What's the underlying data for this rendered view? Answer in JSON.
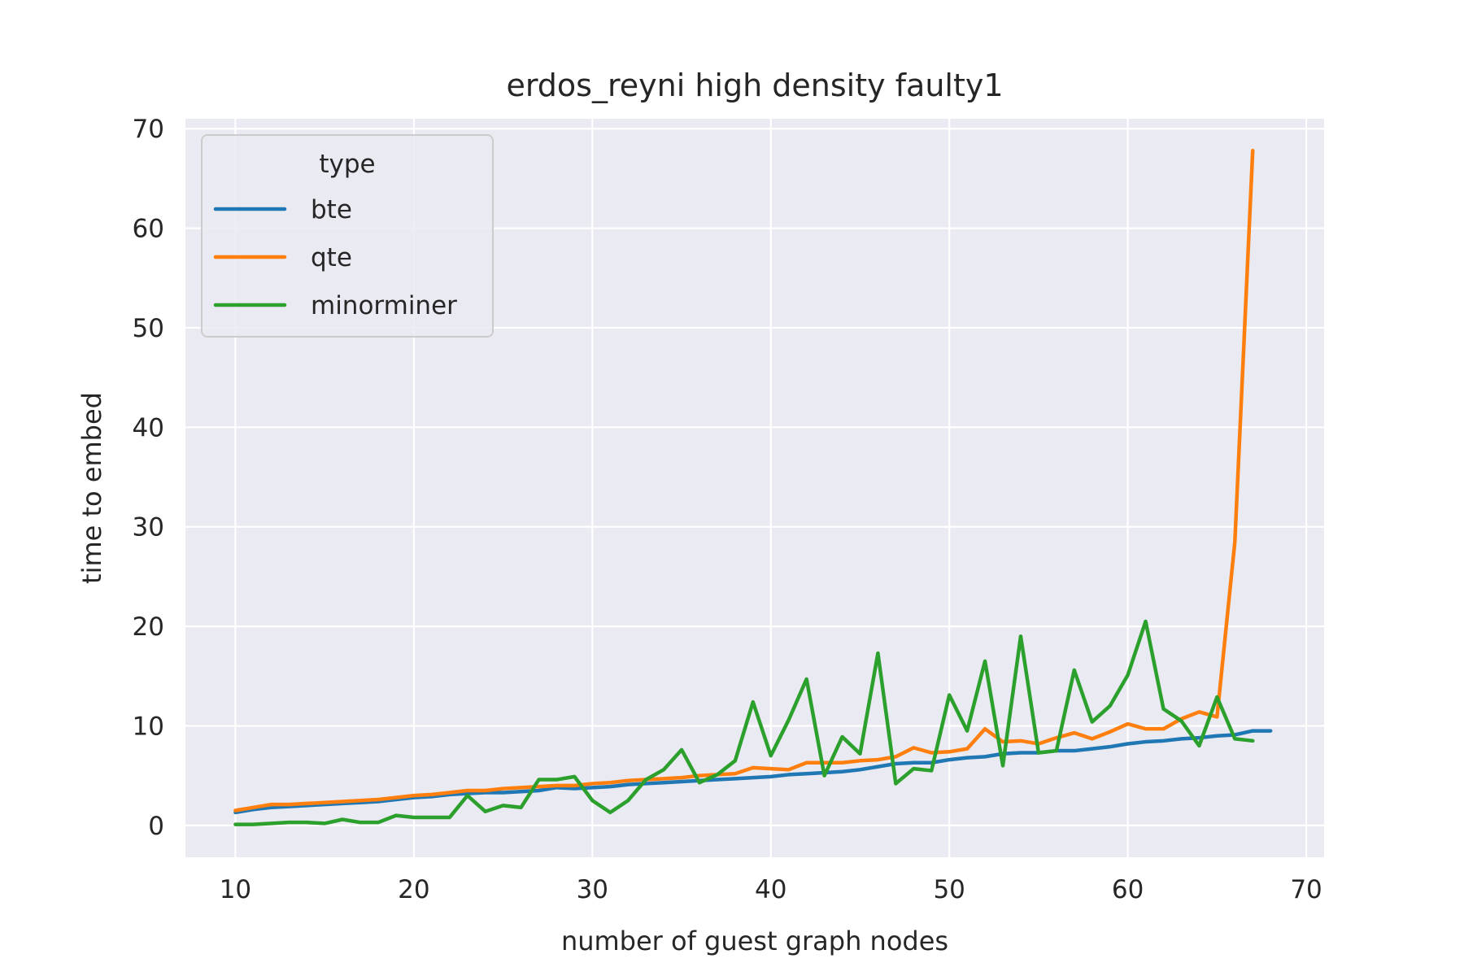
{
  "chart_data": {
    "type": "line",
    "title": "erdos_reyni high density faulty1",
    "xlabel": "number of guest graph nodes",
    "ylabel": "time to embed",
    "xlim": [
      7.2,
      71.0
    ],
    "ylim": [
      -3.2,
      71.0
    ],
    "xticks": [
      "10",
      "20",
      "30",
      "40",
      "50",
      "60",
      "70"
    ],
    "yticks": [
      "0",
      "10",
      "20",
      "30",
      "40",
      "50",
      "60",
      "70"
    ],
    "grid": true,
    "legend": {
      "title": "type",
      "position": "top-left"
    },
    "series": [
      {
        "name": "bte",
        "color": "#1f77b4",
        "x": [
          10,
          11,
          12,
          13,
          14,
          15,
          16,
          17,
          18,
          19,
          20,
          21,
          22,
          23,
          24,
          25,
          26,
          27,
          28,
          29,
          30,
          31,
          32,
          33,
          34,
          35,
          36,
          37,
          38,
          39,
          40,
          41,
          42,
          43,
          44,
          45,
          46,
          47,
          48,
          49,
          50,
          51,
          52,
          53,
          54,
          55,
          56,
          57,
          58,
          59,
          60,
          61,
          62,
          63,
          64,
          65,
          66,
          67,
          68
        ],
        "y": [
          1.3,
          1.6,
          1.8,
          1.9,
          2.0,
          2.1,
          2.2,
          2.3,
          2.4,
          2.6,
          2.8,
          2.9,
          3.1,
          3.2,
          3.3,
          3.3,
          3.4,
          3.5,
          3.8,
          3.7,
          3.8,
          3.9,
          4.1,
          4.2,
          4.3,
          4.4,
          4.5,
          4.6,
          4.7,
          4.8,
          4.9,
          5.1,
          5.2,
          5.3,
          5.4,
          5.6,
          5.9,
          6.2,
          6.3,
          6.3,
          6.6,
          6.8,
          6.9,
          7.2,
          7.3,
          7.3,
          7.5,
          7.5,
          7.7,
          7.9,
          8.2,
          8.4,
          8.5,
          8.7,
          8.8,
          9.0,
          9.1,
          9.5,
          9.5
        ]
      },
      {
        "name": "qte",
        "color": "#ff7f0e",
        "x": [
          10,
          11,
          12,
          13,
          14,
          15,
          16,
          17,
          18,
          19,
          20,
          21,
          22,
          23,
          24,
          25,
          26,
          27,
          28,
          29,
          30,
          31,
          32,
          33,
          34,
          35,
          36,
          37,
          38,
          39,
          40,
          41,
          42,
          43,
          44,
          45,
          46,
          47,
          48,
          49,
          50,
          51,
          52,
          53,
          54,
          55,
          56,
          57,
          58,
          59,
          60,
          61,
          62,
          63,
          64,
          65,
          66,
          67
        ],
        "y": [
          1.5,
          1.8,
          2.1,
          2.1,
          2.2,
          2.3,
          2.4,
          2.5,
          2.6,
          2.8,
          3.0,
          3.1,
          3.3,
          3.5,
          3.5,
          3.7,
          3.8,
          3.9,
          4.0,
          4.0,
          4.2,
          4.3,
          4.5,
          4.6,
          4.7,
          4.8,
          5.0,
          5.1,
          5.2,
          5.8,
          5.7,
          5.6,
          6.3,
          6.3,
          6.3,
          6.5,
          6.6,
          6.9,
          7.8,
          7.3,
          7.4,
          7.7,
          9.7,
          8.4,
          8.5,
          8.2,
          8.8,
          9.3,
          8.7,
          9.4,
          10.2,
          9.7,
          9.7,
          10.7,
          11.4,
          10.9,
          28.5,
          67.8
        ]
      },
      {
        "name": "minorminer",
        "color": "#2ca02c",
        "x": [
          10,
          11,
          12,
          13,
          14,
          15,
          16,
          17,
          18,
          19,
          20,
          21,
          22,
          23,
          24,
          25,
          26,
          27,
          28,
          29,
          30,
          31,
          32,
          33,
          34,
          35,
          36,
          37,
          38,
          39,
          40,
          41,
          42,
          43,
          44,
          45,
          46,
          47,
          48,
          49,
          50,
          51,
          52,
          53,
          54,
          55,
          56,
          57,
          58,
          59,
          60,
          61,
          62,
          63,
          64,
          65,
          66,
          67
        ],
        "y": [
          0.1,
          0.1,
          0.2,
          0.3,
          0.3,
          0.2,
          0.6,
          0.3,
          0.3,
          1.0,
          0.8,
          0.8,
          0.8,
          3.0,
          1.4,
          2.0,
          1.8,
          4.6,
          4.6,
          4.9,
          2.5,
          1.3,
          2.5,
          4.6,
          5.6,
          7.6,
          4.3,
          5.1,
          6.5,
          12.4,
          7.0,
          10.6,
          14.7,
          5.0,
          8.9,
          7.2,
          17.3,
          4.2,
          5.7,
          5.5,
          13.1,
          9.5,
          16.5,
          6.0,
          19.0,
          7.3,
          7.5,
          15.6,
          10.4,
          12.0,
          15.1,
          20.5,
          11.7,
          10.5,
          8.0,
          12.9,
          8.7,
          8.5
        ]
      }
    ]
  }
}
